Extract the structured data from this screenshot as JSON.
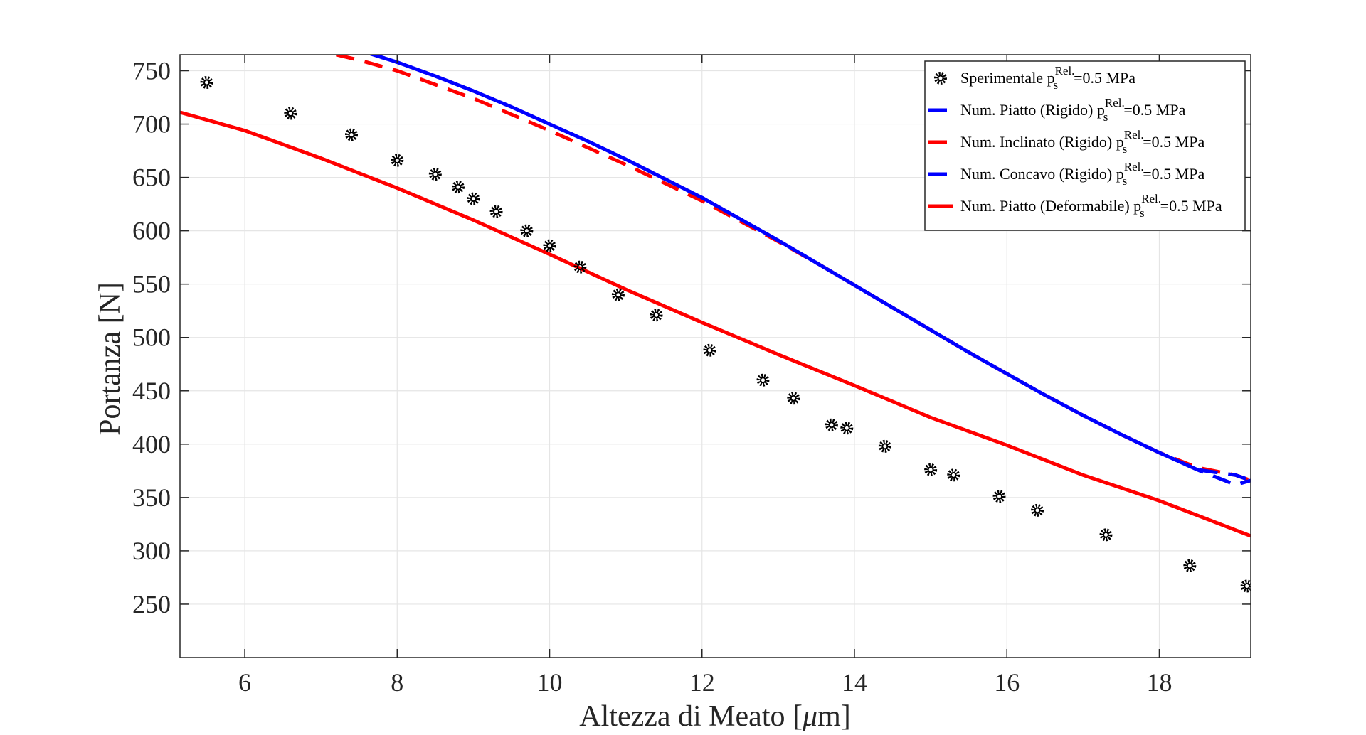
{
  "chart_data": {
    "type": "line",
    "xlabel_main": "Altezza di Meato [",
    "xlabel_mu": "μ",
    "xlabel_end": "m]",
    "ylabel": "Portanza [N]",
    "xlim": [
      5.15,
      19.2
    ],
    "ylim": [
      200,
      765
    ],
    "x_ticks": [
      6,
      8,
      10,
      12,
      14,
      16,
      18
    ],
    "y_ticks": [
      250,
      300,
      350,
      400,
      450,
      500,
      550,
      600,
      650,
      700,
      750
    ],
    "grid": true,
    "legend_placement": "top-right",
    "series": [
      {
        "name": "Sperimentale",
        "legend_main": "Sperimentale p",
        "legend_sub": "s",
        "legend_sup": "Rel.",
        "legend_tail": "=0.5 MPa",
        "style": "marker",
        "color": "#000000",
        "x": [
          5.5,
          6.6,
          7.4,
          8.0,
          8.5,
          8.8,
          9.0,
          9.3,
          9.7,
          10.0,
          10.4,
          10.9,
          11.4,
          12.1,
          12.8,
          13.2,
          13.7,
          13.9,
          14.4,
          15.0,
          15.3,
          15.9,
          16.4,
          17.3,
          18.4,
          19.15
        ],
        "y": [
          739,
          710,
          690,
          666,
          653,
          641,
          630,
          618,
          600,
          586,
          566,
          540,
          521,
          488,
          460,
          443,
          418,
          415,
          398,
          376,
          371,
          351,
          338,
          315,
          286,
          267
        ]
      },
      {
        "name": "Num. Piatto (Rigido)",
        "legend_main": "Num. Piatto (Rigido) p",
        "legend_sub": "s",
        "legend_sup": "Rel.",
        "legend_tail": "=0.5 MPa",
        "style": "dashed",
        "color": "#0000ff",
        "x": [
          7.6,
          8.0,
          8.5,
          9.0,
          9.5,
          10.0,
          10.5,
          11.0,
          11.5,
          12.0,
          12.5,
          13.0,
          13.5,
          14.0,
          14.5,
          15.0,
          15.5,
          16.0,
          16.5,
          17.0,
          17.5,
          18.0,
          18.5,
          19.0,
          19.2
        ],
        "y": [
          767,
          758,
          745,
          731,
          716,
          700,
          684,
          667,
          649,
          631,
          611,
          591,
          570,
          549,
          528,
          507,
          486,
          466,
          446,
          427,
          409,
          392,
          376,
          362,
          366
        ]
      },
      {
        "name": "Num. Inclinato (Rigido)",
        "legend_main": "Num. Inclinato (Rigido) p",
        "legend_sub": "s",
        "legend_sup": "Rel.",
        "legend_tail": "=0.5 MPa",
        "style": "dashed",
        "color": "#ff0000",
        "x": [
          7.2,
          7.5,
          8.0,
          8.5,
          9.0,
          9.5,
          10.0,
          10.5,
          11.0,
          11.5,
          12.0,
          12.5,
          13.0,
          13.5,
          14.0,
          14.5,
          15.0,
          15.5,
          16.0,
          16.5,
          17.0,
          17.5,
          18.0,
          18.5,
          19.0,
          19.2
        ],
        "y": [
          765,
          760,
          750,
          737,
          724,
          709,
          694,
          678,
          662,
          645,
          628,
          609,
          590,
          570,
          549,
          528,
          507,
          486,
          466,
          446,
          427,
          409,
          392,
          378,
          371,
          366
        ]
      },
      {
        "name": "Num. Concavo (Rigido)",
        "legend_main": "Num. Concavo (Rigido) p",
        "legend_sub": "s",
        "legend_sup": "Rel.",
        "legend_tail": "=0.5 MPa",
        "style": "dashed",
        "color": "#0000ff",
        "x": [
          7.6,
          8.0,
          8.5,
          9.0,
          9.5,
          10.0,
          10.5,
          11.0,
          11.5,
          12.0,
          12.5,
          13.0,
          13.5,
          14.0,
          14.5,
          15.0,
          15.5,
          16.0,
          16.5,
          17.0,
          17.5,
          18.0,
          18.5,
          19.0,
          19.2
        ],
        "y": [
          767,
          758,
          745,
          731,
          716,
          700,
          684,
          667,
          649,
          631,
          611,
          591,
          570,
          549,
          528,
          507,
          486,
          466,
          446,
          427,
          409,
          392,
          376,
          371,
          366
        ]
      },
      {
        "name": "Num. Piatto (Deformabile)",
        "legend_main": "Num. Piatto (Deformabile) p",
        "legend_sub": "s",
        "legend_sup": "Rel.",
        "legend_tail": "=0.5 MPa",
        "style": "solid",
        "color": "#ff0000",
        "x": [
          5.15,
          6.0,
          7.0,
          8.0,
          9.0,
          10.0,
          11.0,
          12.0,
          13.0,
          14.0,
          15.0,
          16.0,
          17.0,
          18.0,
          19.2
        ],
        "y": [
          711,
          694,
          668,
          640,
          610,
          578,
          545,
          514,
          484,
          455,
          425,
          399,
          371,
          347,
          314
        ]
      }
    ]
  }
}
